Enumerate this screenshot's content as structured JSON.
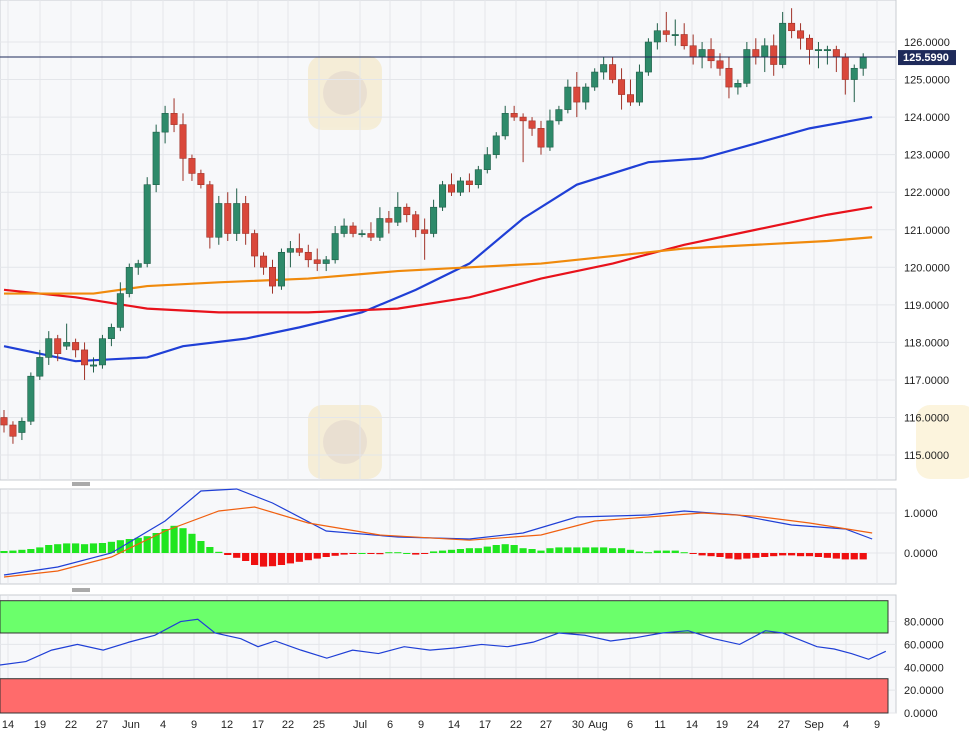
{
  "chart_data": [
    {
      "type": "candlestick",
      "panel": "price",
      "yticks": [
        "126.0000",
        "125.0000",
        "124.0000",
        "123.0000",
        "122.0000",
        "121.0000",
        "120.0000",
        "119.0000",
        "118.0000",
        "117.0000",
        "116.0000",
        "115.0000"
      ],
      "ylim": [
        114.7,
        126.9
      ],
      "last_price": "125.5990",
      "xticks": [
        "14",
        "19",
        "22",
        "27",
        "Jun",
        "4",
        "9",
        "12",
        "17",
        "22",
        "25",
        "Jul",
        "6",
        "9",
        "14",
        "17",
        "22",
        "27",
        "30",
        "Aug",
        "6",
        "11",
        "14",
        "19",
        "24",
        "27",
        "Sep",
        "4",
        "9"
      ],
      "candles": [
        [
          116.0,
          116.2,
          115.6,
          115.8
        ],
        [
          115.8,
          115.9,
          115.3,
          115.5
        ],
        [
          115.6,
          116.0,
          115.4,
          115.9
        ],
        [
          115.9,
          117.2,
          115.8,
          117.1
        ],
        [
          117.1,
          117.8,
          117.0,
          117.6
        ],
        [
          117.6,
          118.3,
          117.4,
          118.1
        ],
        [
          118.1,
          118.2,
          117.5,
          117.7
        ],
        [
          117.9,
          118.5,
          117.8,
          118.0
        ],
        [
          118.0,
          118.1,
          117.6,
          117.8
        ],
        [
          117.8,
          118.0,
          117.0,
          117.4
        ],
        [
          117.4,
          117.6,
          117.2,
          117.4
        ],
        [
          117.4,
          118.2,
          117.3,
          118.1
        ],
        [
          118.1,
          118.5,
          117.9,
          118.4
        ],
        [
          118.4,
          119.6,
          118.3,
          119.3
        ],
        [
          119.3,
          120.1,
          119.2,
          120.0
        ],
        [
          120.0,
          120.2,
          119.8,
          120.1
        ],
        [
          120.1,
          122.4,
          120.0,
          122.2
        ],
        [
          122.2,
          123.8,
          122.0,
          123.6
        ],
        [
          123.6,
          124.3,
          123.3,
          124.1
        ],
        [
          124.1,
          124.5,
          123.6,
          123.8
        ],
        [
          123.8,
          124.1,
          122.3,
          122.9
        ],
        [
          122.9,
          123.0,
          122.3,
          122.5
        ],
        [
          122.5,
          122.6,
          122.1,
          122.2
        ],
        [
          122.2,
          122.3,
          120.5,
          120.8
        ],
        [
          120.8,
          121.9,
          120.6,
          121.7
        ],
        [
          121.7,
          122.0,
          120.7,
          120.9
        ],
        [
          120.9,
          122.1,
          120.7,
          121.7
        ],
        [
          121.7,
          121.9,
          120.6,
          120.9
        ],
        [
          120.9,
          121.0,
          120.0,
          120.3
        ],
        [
          120.3,
          120.4,
          119.8,
          120.0
        ],
        [
          120.0,
          120.2,
          119.3,
          119.5
        ],
        [
          119.5,
          120.5,
          119.4,
          120.4
        ],
        [
          120.4,
          120.7,
          120.0,
          120.5
        ],
        [
          120.5,
          120.9,
          120.3,
          120.4
        ],
        [
          120.4,
          120.6,
          120.0,
          120.2
        ],
        [
          120.2,
          120.5,
          119.9,
          120.1
        ],
        [
          120.1,
          120.3,
          119.9,
          120.2
        ],
        [
          120.2,
          121.1,
          120.1,
          120.9
        ],
        [
          120.9,
          121.3,
          120.8,
          121.1
        ],
        [
          121.1,
          121.2,
          120.8,
          120.9
        ],
        [
          120.9,
          121.0,
          120.8,
          120.9
        ],
        [
          120.9,
          121.2,
          120.7,
          120.8
        ],
        [
          120.8,
          121.6,
          120.7,
          121.3
        ],
        [
          121.3,
          121.5,
          120.9,
          121.2
        ],
        [
          121.2,
          122.0,
          121.1,
          121.6
        ],
        [
          121.6,
          121.7,
          121.2,
          121.4
        ],
        [
          121.4,
          121.5,
          120.8,
          121.0
        ],
        [
          121.0,
          121.3,
          120.2,
          120.9
        ],
        [
          120.9,
          121.8,
          120.8,
          121.6
        ],
        [
          121.6,
          122.3,
          121.5,
          122.2
        ],
        [
          122.2,
          122.5,
          121.9,
          122.0
        ],
        [
          122.0,
          122.4,
          121.9,
          122.3
        ],
        [
          122.3,
          122.5,
          122.0,
          122.2
        ],
        [
          122.2,
          122.7,
          122.1,
          122.6
        ],
        [
          122.6,
          123.2,
          122.5,
          123.0
        ],
        [
          123.0,
          123.6,
          122.9,
          123.5
        ],
        [
          123.5,
          124.3,
          123.4,
          124.1
        ],
        [
          124.1,
          124.3,
          123.9,
          124.0
        ],
        [
          124.0,
          124.1,
          122.8,
          123.9
        ],
        [
          123.9,
          124.0,
          123.5,
          123.7
        ],
        [
          123.7,
          123.9,
          123.0,
          123.2
        ],
        [
          123.2,
          124.2,
          123.1,
          123.9
        ],
        [
          123.9,
          124.3,
          123.8,
          124.2
        ],
        [
          124.2,
          125.0,
          124.1,
          124.8
        ],
        [
          124.8,
          125.2,
          124.0,
          124.4
        ],
        [
          124.4,
          124.9,
          124.2,
          124.8
        ],
        [
          124.8,
          125.3,
          124.7,
          125.2
        ],
        [
          125.2,
          125.6,
          125.0,
          125.4
        ],
        [
          125.4,
          125.6,
          124.9,
          125.0
        ],
        [
          125.0,
          125.3,
          124.2,
          124.6
        ],
        [
          124.6,
          125.0,
          124.3,
          124.4
        ],
        [
          124.4,
          125.4,
          124.3,
          125.2
        ],
        [
          125.2,
          126.1,
          125.1,
          126.0
        ],
        [
          126.0,
          126.5,
          125.8,
          126.3
        ],
        [
          126.3,
          126.8,
          126.0,
          126.2
        ],
        [
          126.2,
          126.6,
          125.9,
          126.2
        ],
        [
          126.2,
          126.5,
          125.8,
          125.9
        ],
        [
          125.9,
          126.2,
          125.4,
          125.6
        ],
        [
          125.6,
          126.0,
          125.3,
          125.8
        ],
        [
          125.8,
          126.1,
          125.3,
          125.5
        ],
        [
          125.5,
          125.7,
          125.1,
          125.3
        ],
        [
          125.3,
          125.6,
          124.5,
          124.8
        ],
        [
          124.8,
          125.0,
          124.6,
          124.9
        ],
        [
          124.9,
          126.0,
          124.8,
          125.8
        ],
        [
          125.8,
          126.1,
          125.4,
          125.6
        ],
        [
          125.6,
          126.1,
          125.2,
          125.9
        ],
        [
          125.9,
          126.2,
          125.1,
          125.4
        ],
        [
          125.4,
          126.8,
          125.3,
          126.5
        ],
        [
          126.5,
          126.9,
          126.1,
          126.3
        ],
        [
          126.3,
          126.5,
          125.8,
          126.1
        ],
        [
          126.1,
          126.2,
          125.4,
          125.8
        ],
        [
          125.8,
          126.0,
          125.3,
          125.8
        ],
        [
          125.8,
          125.9,
          125.4,
          125.8
        ],
        [
          125.8,
          125.9,
          125.2,
          125.6
        ],
        [
          125.6,
          125.7,
          124.6,
          125.0
        ],
        [
          125.0,
          125.4,
          124.4,
          125.3
        ],
        [
          125.3,
          125.7,
          125.1,
          125.6
        ]
      ],
      "ma_series": [
        {
          "color": "#1f3fd6",
          "points": [
            [
              0,
              117.9
            ],
            [
              8,
              117.5
            ],
            [
              16,
              117.6
            ],
            [
              20,
              117.9
            ],
            [
              27,
              118.1
            ],
            [
              33,
              118.4
            ],
            [
              40,
              118.8
            ],
            [
              46,
              119.4
            ],
            [
              52,
              120.1
            ],
            [
              58,
              121.3
            ],
            [
              64,
              122.2
            ],
            [
              72,
              122.8
            ],
            [
              78,
              122.9
            ],
            [
              84,
              123.3
            ],
            [
              90,
              123.7
            ],
            [
              97,
              124.0
            ]
          ]
        },
        {
          "color": "#e8121b",
          "points": [
            [
              0,
              119.4
            ],
            [
              8,
              119.2
            ],
            [
              16,
              118.9
            ],
            [
              24,
              118.8
            ],
            [
              34,
              118.8
            ],
            [
              44,
              118.9
            ],
            [
              52,
              119.2
            ],
            [
              60,
              119.7
            ],
            [
              68,
              120.1
            ],
            [
              76,
              120.6
            ],
            [
              84,
              121.0
            ],
            [
              92,
              121.4
            ],
            [
              97,
              121.6
            ]
          ]
        },
        {
          "color": "#f08a0c",
          "points": [
            [
              0,
              119.3
            ],
            [
              10,
              119.3
            ],
            [
              16,
              119.5
            ],
            [
              24,
              119.6
            ],
            [
              34,
              119.7
            ],
            [
              44,
              119.9
            ],
            [
              52,
              120.0
            ],
            [
              60,
              120.1
            ],
            [
              68,
              120.3
            ],
            [
              76,
              120.5
            ],
            [
              84,
              120.6
            ],
            [
              92,
              120.7
            ],
            [
              97,
              120.8
            ]
          ]
        }
      ]
    },
    {
      "type": "macd",
      "panel": "macd",
      "yticks": [
        "1.0000",
        "0.0000"
      ],
      "ylim": [
        -0.8,
        1.6
      ],
      "hist_up_color": "#1fe51f",
      "hist_down_color": "#ef1010",
      "histogram": [
        0.05,
        0.06,
        0.08,
        0.1,
        0.14,
        0.2,
        0.22,
        0.24,
        0.24,
        0.22,
        0.24,
        0.25,
        0.28,
        0.32,
        0.35,
        0.38,
        0.42,
        0.5,
        0.6,
        0.68,
        0.62,
        0.48,
        0.3,
        0.15,
        0.03,
        -0.05,
        -0.12,
        -0.2,
        -0.3,
        -0.34,
        -0.33,
        -0.3,
        -0.26,
        -0.22,
        -0.18,
        -0.14,
        -0.1,
        -0.07,
        -0.04,
        -0.02,
        0.0,
        -0.02,
        -0.03,
        0.02,
        0.02,
        0.0,
        -0.04,
        -0.02,
        0.04,
        0.06,
        0.08,
        0.1,
        0.12,
        0.12,
        0.16,
        0.2,
        0.22,
        0.2,
        0.12,
        0.1,
        0.06,
        0.12,
        0.14,
        0.14,
        0.14,
        0.14,
        0.14,
        0.14,
        0.12,
        0.12,
        0.08,
        0.04,
        0.02,
        0.06,
        0.06,
        0.06,
        0.02,
        -0.02,
        -0.06,
        -0.08,
        -0.1,
        -0.14,
        -0.16,
        -0.14,
        -0.12,
        -0.1,
        -0.08,
        -0.06,
        -0.06,
        -0.08,
        -0.08,
        -0.1,
        -0.12,
        -0.14,
        -0.16,
        -0.16,
        -0.16
      ],
      "lines": [
        {
          "color": "#1f3fd6",
          "points": [
            [
              0,
              -0.55
            ],
            [
              6,
              -0.35
            ],
            [
              12,
              0.0
            ],
            [
              18,
              0.8
            ],
            [
              22,
              1.55
            ],
            [
              26,
              1.6
            ],
            [
              30,
              1.25
            ],
            [
              36,
              0.55
            ],
            [
              44,
              0.4
            ],
            [
              52,
              0.35
            ],
            [
              58,
              0.5
            ],
            [
              64,
              0.9
            ],
            [
              72,
              0.95
            ],
            [
              76,
              1.05
            ],
            [
              82,
              0.95
            ],
            [
              88,
              0.7
            ],
            [
              94,
              0.6
            ],
            [
              97,
              0.35
            ]
          ]
        },
        {
          "color": "#f06010",
          "points": [
            [
              0,
              -0.6
            ],
            [
              6,
              -0.45
            ],
            [
              12,
              -0.1
            ],
            [
              18,
              0.55
            ],
            [
              24,
              1.05
            ],
            [
              28,
              1.15
            ],
            [
              34,
              0.75
            ],
            [
              42,
              0.45
            ],
            [
              52,
              0.32
            ],
            [
              60,
              0.45
            ],
            [
              66,
              0.8
            ],
            [
              72,
              0.9
            ],
            [
              78,
              1.0
            ],
            [
              84,
              0.92
            ],
            [
              90,
              0.75
            ],
            [
              97,
              0.5
            ]
          ]
        }
      ]
    },
    {
      "type": "oscillator",
      "panel": "rsi",
      "yticks": [
        "80.0000",
        "60.0000",
        "40.0000",
        "20.0000",
        "0.0000"
      ],
      "ylim": [
        0,
        100
      ],
      "overbought_color": "#6bff6b",
      "oversold_color": "#ff6b6b",
      "overbought_level": 70,
      "oversold_level": 30,
      "line": {
        "color": "#1f3fd6",
        "points": [
          [
            0,
            42
          ],
          [
            3,
            45
          ],
          [
            6,
            55
          ],
          [
            9,
            60
          ],
          [
            12,
            55
          ],
          [
            15,
            62
          ],
          [
            18,
            68
          ],
          [
            21,
            80
          ],
          [
            23,
            82
          ],
          [
            25,
            70
          ],
          [
            28,
            65
          ],
          [
            30,
            58
          ],
          [
            32,
            63
          ],
          [
            35,
            55
          ],
          [
            38,
            48
          ],
          [
            41,
            55
          ],
          [
            44,
            52
          ],
          [
            47,
            58
          ],
          [
            50,
            55
          ],
          [
            53,
            57
          ],
          [
            56,
            60
          ],
          [
            59,
            58
          ],
          [
            62,
            62
          ],
          [
            65,
            70
          ],
          [
            68,
            68
          ],
          [
            71,
            63
          ],
          [
            74,
            66
          ],
          [
            77,
            70
          ],
          [
            80,
            72
          ],
          [
            83,
            65
          ],
          [
            86,
            60
          ],
          [
            89,
            72
          ],
          [
            91,
            70
          ],
          [
            93,
            64
          ],
          [
            95,
            58
          ],
          [
            97,
            56
          ],
          [
            99,
            52
          ],
          [
            101,
            47
          ],
          [
            103,
            54
          ]
        ]
      }
    }
  ]
}
